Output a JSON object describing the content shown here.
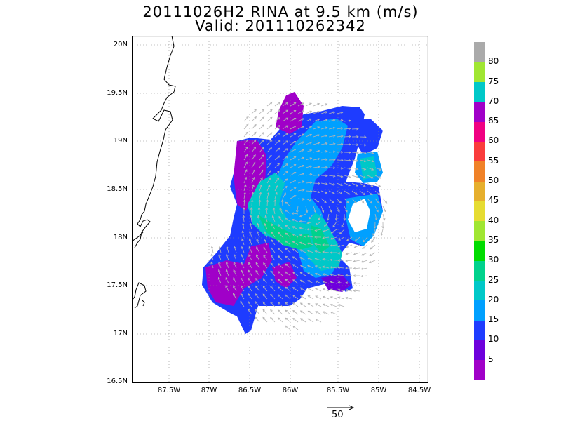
{
  "title": {
    "line1": "20111026H2 RINA at 9.5 km (m/s)",
    "line2": "Valid: 201110262342"
  },
  "axes": {
    "y_labels": [
      "20N",
      "19.5N",
      "19N",
      "18.5N",
      "18N",
      "17.5N",
      "17N",
      "16.5N"
    ],
    "x_labels": [
      "87.5W",
      "87W",
      "86.5W",
      "86W",
      "85.5W",
      "85W",
      "84.5W"
    ]
  },
  "colorbar": {
    "labels": [
      "5",
      "10",
      "15",
      "20",
      "25",
      "30",
      "35",
      "40",
      "45",
      "50",
      "55",
      "60",
      "65",
      "70",
      "75",
      "80"
    ],
    "colors": [
      "#a000c8",
      "#6e00dc",
      "#1e3cff",
      "#00a0ff",
      "#00c8c8",
      "#00d28c",
      "#00dc00",
      "#a0e632",
      "#e6dc32",
      "#e6af2d",
      "#f08228",
      "#fa3c3c",
      "#f00082",
      "#a000c8",
      "#00c8c8",
      "#a0e632",
      "#aaaaaa"
    ]
  },
  "reference_vector": {
    "label": "50"
  },
  "colors": {
    "coastline": "#000000",
    "grid": "#888888",
    "wind_arrows": "#b4b4b4"
  }
}
